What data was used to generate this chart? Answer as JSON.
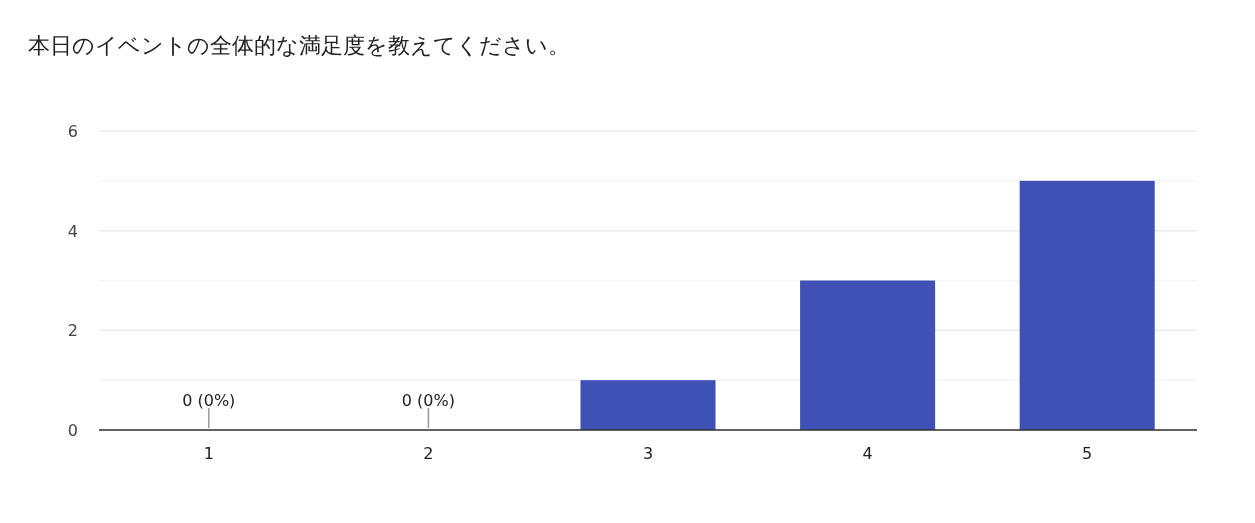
{
  "chart_data": {
    "type": "bar",
    "title": "本日のイベントの全体的な満足度を教えてください。",
    "categories": [
      "1",
      "2",
      "3",
      "4",
      "5"
    ],
    "values": [
      0,
      0,
      1,
      3,
      5
    ],
    "value_labels": [
      "0 (0%)",
      "0 (0%)",
      null,
      null,
      null
    ],
    "color": "#3f51b5",
    "ylim": [
      0,
      6
    ],
    "yticks": [
      0,
      {
        "value": 1,
        "label": null
      },
      2,
      {
        "value": 3,
        "label": null
      },
      4,
      {
        "value": 5,
        "label": null
      },
      6
    ],
    "grid": "y"
  }
}
